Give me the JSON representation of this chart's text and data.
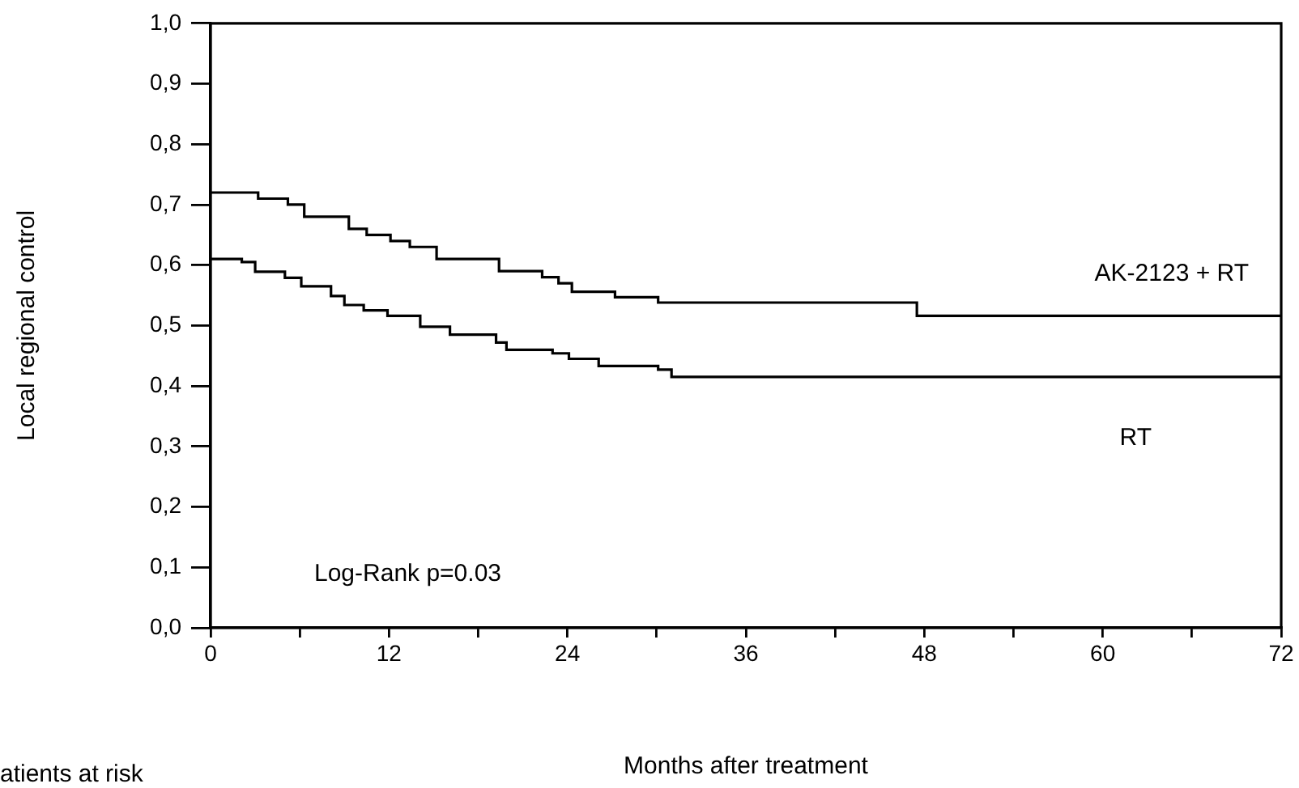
{
  "chart_data": {
    "type": "step",
    "xlabel": "Months after treatment",
    "ylabel": "Local regional control",
    "annotations": [
      "Log-Rank p=0.03",
      "atients at risk"
    ],
    "marker": "none",
    "xlim": [
      0,
      72
    ],
    "xticks": [
      0,
      {
        "value": 6,
        "label": null
      },
      12,
      {
        "value": 18,
        "label": null
      },
      24,
      {
        "value": 30,
        "label": null
      },
      36,
      {
        "value": 42,
        "label": null
      },
      48,
      {
        "value": 54,
        "label": null
      },
      60,
      {
        "value": 66,
        "label": null
      },
      72
    ],
    "ylim": [
      0,
      1
    ],
    "yticks": [
      {
        "value": 0,
        "label": "0,0"
      },
      {
        "value": 0.1,
        "label": "0,1"
      },
      {
        "value": 0.2,
        "label": "0,2"
      },
      {
        "value": 0.3,
        "label": "0,3"
      },
      {
        "value": 0.4,
        "label": "0,4"
      },
      {
        "value": 0.5,
        "label": "0,5"
      },
      {
        "value": 0.6,
        "label": "0,6"
      },
      {
        "value": 0.7,
        "label": "0,7"
      },
      {
        "value": 0.8,
        "label": "0,8"
      },
      {
        "value": 0.9,
        "label": "0,9"
      },
      {
        "value": 1,
        "label": "1,0"
      }
    ],
    "series": [
      {
        "name": "AK-2123 + RT",
        "color": "#000000",
        "x": [
          0,
          3.2,
          5.2,
          6.3,
          9.3,
          10.5,
          12.1,
          13.4,
          15.2,
          19.4,
          22.3,
          23.4,
          24.3,
          27.2,
          30.1,
          47.5,
          72
        ],
        "values": [
          0.72,
          0.71,
          0.7,
          0.68,
          0.66,
          0.65,
          0.64,
          0.63,
          0.61,
          0.59,
          0.58,
          0.57,
          0.556,
          0.547,
          0.538,
          0.516,
          0.516
        ]
      },
      {
        "name": "RT",
        "color": "#000000",
        "x": [
          0,
          2.1,
          3,
          5,
          6.1,
          8.1,
          9,
          10.3,
          11.9,
          14.1,
          16.1,
          19.2,
          19.9,
          23,
          24.1,
          26.1,
          30.1,
          31,
          72
        ],
        "values": [
          0.61,
          0.605,
          0.589,
          0.579,
          0.565,
          0.549,
          0.534,
          0.525,
          0.516,
          0.498,
          0.485,
          0.472,
          0.46,
          0.454,
          0.445,
          0.433,
          0.427,
          0.415,
          0.415
        ]
      }
    ]
  }
}
